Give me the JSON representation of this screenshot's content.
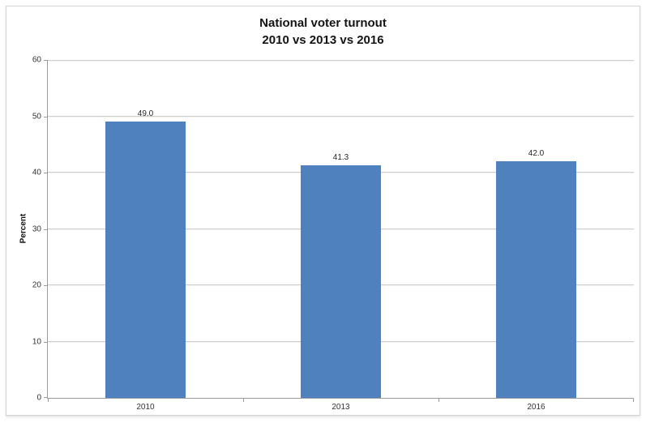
{
  "chart_data": {
    "type": "bar",
    "title": "National voter turnout",
    "subtitle": "2010 vs 2013 vs 2016",
    "categories": [
      "2010",
      "2013",
      "2016"
    ],
    "values": [
      49.0,
      41.3,
      42.0
    ],
    "data_labels": [
      "49.0",
      "41.3",
      "42.0"
    ],
    "xlabel": "",
    "ylabel": "Percent",
    "ylim": [
      0,
      60
    ],
    "yticks": [
      0,
      10,
      20,
      30,
      40,
      50,
      60
    ],
    "grid": true,
    "legend_position": "none",
    "bar_color": "#4E81BD",
    "gridline_color": "#CDCDCD",
    "axis_color": "#9B9B9B",
    "tick_text_color": "#333333",
    "label_text_color": "#262626"
  }
}
